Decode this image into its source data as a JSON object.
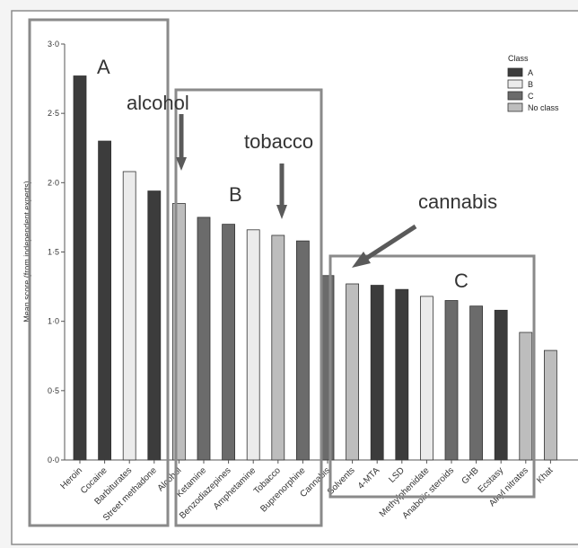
{
  "chart_data": {
    "type": "bar",
    "ylabel": "Mean score (from independent experts)",
    "ylim": [
      0,
      3
    ],
    "yticks": [
      "0·0",
      "0·5",
      "1·0",
      "1·5",
      "2·0",
      "2·5",
      "3·0"
    ],
    "categories": [
      "Heroin",
      "Cocaine",
      "Barbiturates",
      "Street methadone",
      "Alcohol",
      "Ketamine",
      "Benzodiazepines",
      "Amphetamine",
      "Tobacco",
      "Buprenorphine",
      "Cannabis",
      "Solvents",
      "4-MTA",
      "LSD",
      "Methylphenidate",
      "Anabolic steroids",
      "GHB",
      "Ecstasy",
      "Alkyl nitrates",
      "Khat"
    ],
    "values": [
      2.77,
      2.3,
      2.08,
      1.94,
      1.85,
      1.75,
      1.7,
      1.66,
      1.62,
      1.58,
      1.33,
      1.27,
      1.26,
      1.23,
      1.18,
      1.15,
      1.11,
      1.08,
      0.92,
      0.79
    ],
    "classes": [
      "A",
      "A",
      "B",
      "A",
      "No class",
      "C",
      "C",
      "B",
      "No class",
      "C",
      "C",
      "No class",
      "A",
      "A",
      "B",
      "C",
      "C",
      "A",
      "No class",
      "No class"
    ],
    "legend": {
      "title": "Class",
      "position": "top-right",
      "entries": [
        {
          "label": "A",
          "color": "#3c3c3c"
        },
        {
          "label": "B",
          "color": "#ebebeb"
        },
        {
          "label": "C",
          "color": "#6b6b6b"
        },
        {
          "label": "No class",
          "color": "#bdbdbd"
        }
      ]
    },
    "class_colors": {
      "A": "#3c3c3c",
      "B": "#ebebeb",
      "C": "#6b6b6b",
      "No class": "#bdbdbd"
    },
    "annotations": {
      "boxes": [
        "A",
        "B",
        "C"
      ],
      "arrows": [
        "alcohol",
        "tobacco",
        "cannabis"
      ]
    }
  }
}
